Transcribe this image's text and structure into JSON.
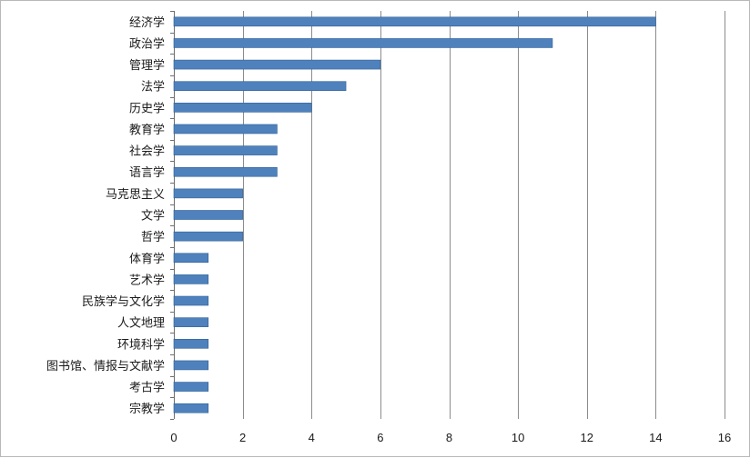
{
  "chart_data": {
    "type": "bar",
    "orientation": "horizontal",
    "title": "",
    "xlabel": "",
    "ylabel": "",
    "categories": [
      "经济学",
      "政治学",
      "管理学",
      "法学",
      "历史学",
      "教育学",
      "社会学",
      "语言学",
      "马克思主义",
      "文学",
      "哲学",
      "体育学",
      "艺术学",
      "民族学与文化学",
      "人文地理",
      "环境科学",
      "图书馆、情报与文献学",
      "考古学",
      "宗教学"
    ],
    "values": [
      14,
      11,
      6,
      5,
      4,
      3,
      3,
      3,
      2,
      2,
      2,
      1,
      1,
      1,
      1,
      1,
      1,
      1,
      1
    ],
    "xlim": [
      0,
      16
    ],
    "xticks": [
      0,
      2,
      4,
      6,
      8,
      10,
      12,
      14,
      16
    ],
    "xtick_labels": [
      "0",
      "2",
      "4",
      "6",
      "8",
      "10",
      "12",
      "14",
      "16"
    ],
    "grid": "vertical",
    "legend": "none",
    "bar_color": "#4f81bd",
    "bar_edge_color": "#2e5f94",
    "grid_color": "#8c8c8c"
  }
}
